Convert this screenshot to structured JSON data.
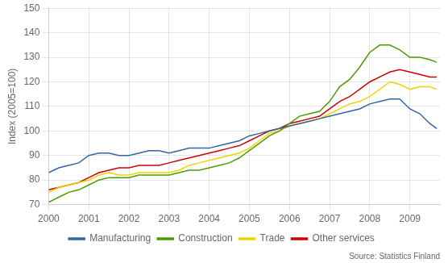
{
  "chart_data": {
    "type": "line",
    "ylabel": "Index (2005=100)",
    "source": "Source: Statistics Finland",
    "xlim": [
      2000.0,
      2009.75
    ],
    "ylim": [
      70,
      150
    ],
    "xticks": [
      2000,
      2001,
      2002,
      2003,
      2004,
      2005,
      2006,
      2007,
      2008,
      2009
    ],
    "yticks": [
      70,
      80,
      90,
      100,
      110,
      120,
      130,
      140,
      150
    ],
    "grid": true,
    "legend": "bottom",
    "x": [
      2000.0,
      2000.25,
      2000.5,
      2000.75,
      2001.0,
      2001.25,
      2001.5,
      2001.75,
      2002.0,
      2002.25,
      2002.5,
      2002.75,
      2003.0,
      2003.25,
      2003.5,
      2003.75,
      2004.0,
      2004.25,
      2004.5,
      2004.75,
      2005.0,
      2005.25,
      2005.5,
      2005.75,
      2006.0,
      2006.25,
      2006.5,
      2006.75,
      2007.0,
      2007.25,
      2007.5,
      2007.75,
      2008.0,
      2008.25,
      2008.5,
      2008.75,
      2009.0,
      2009.25,
      2009.5,
      2009.67
    ],
    "series": [
      {
        "name": "Manufacturing",
        "color": "#3465a4",
        "values": [
          83,
          85,
          86,
          87,
          90,
          91,
          91,
          90,
          90,
          91,
          92,
          92,
          91,
          92,
          93,
          93,
          93,
          94,
          95,
          96,
          98,
          99,
          100,
          101,
          102,
          103,
          104,
          105,
          106,
          107,
          108,
          109,
          111,
          112,
          113,
          113,
          109,
          107,
          103,
          101
        ]
      },
      {
        "name": "Construction",
        "color": "#4e9a06",
        "values": [
          71,
          73,
          75,
          76,
          78,
          80,
          81,
          81,
          81,
          82,
          82,
          82,
          82,
          83,
          84,
          84,
          85,
          86,
          87,
          89,
          92,
          95,
          98,
          100,
          103,
          106,
          107,
          108,
          112,
          118,
          121,
          126,
          132,
          135,
          135,
          133,
          130,
          130,
          129,
          128
        ]
      },
      {
        "name": "Trade",
        "color": "#edd400",
        "values": [
          75,
          77,
          78,
          79,
          80,
          82,
          83,
          82,
          82,
          83,
          83,
          83,
          83,
          84,
          86,
          87,
          88,
          89,
          90,
          91,
          93,
          96,
          99,
          100,
          102,
          103,
          104,
          105,
          107,
          109,
          111,
          112,
          114,
          117,
          120,
          119,
          117,
          118,
          118,
          117
        ]
      },
      {
        "name": "Other services",
        "color": "#cc0000",
        "values": [
          76,
          77,
          78,
          79,
          81,
          83,
          84,
          85,
          85,
          86,
          86,
          86,
          87,
          88,
          89,
          90,
          91,
          92,
          93,
          94,
          96,
          98,
          100,
          101,
          103,
          104,
          105,
          106,
          109,
          112,
          114,
          117,
          120,
          122,
          124,
          125,
          124,
          123,
          122,
          122
        ]
      }
    ]
  }
}
